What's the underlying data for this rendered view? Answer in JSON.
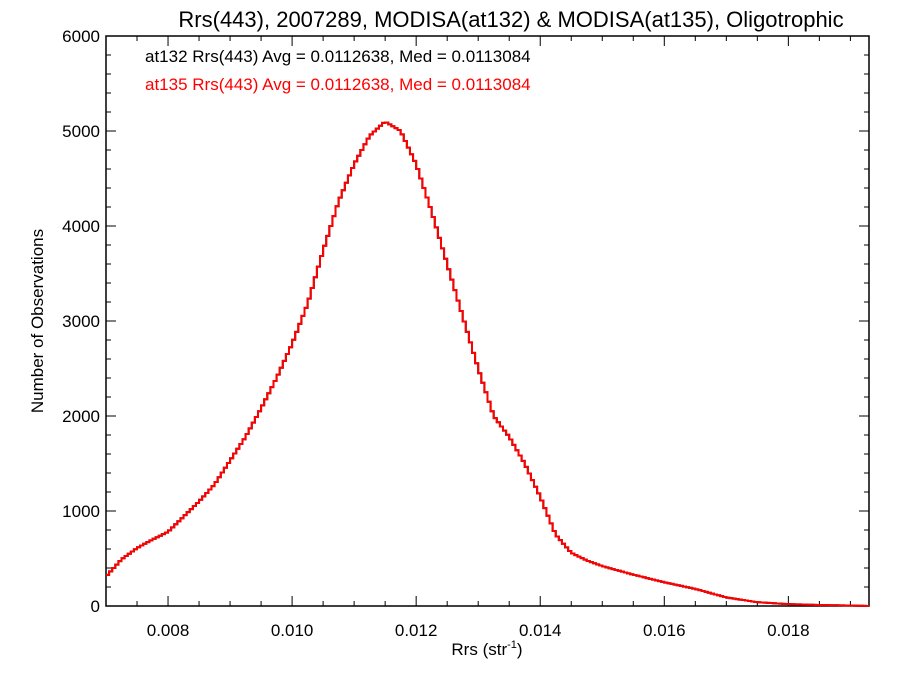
{
  "chart_data": {
    "type": "line",
    "step": true,
    "title": "Rrs(443), 2007289, MODISA(at132) & MODISA(at135), Oligotrophic",
    "xlabel_main": "Rrs (str",
    "xlabel_sup": "-1",
    "xlabel_close": ")",
    "ylabel": "Number of Observations",
    "xlim": [
      0.007,
      0.0193
    ],
    "ylim": [
      0,
      6000
    ],
    "xticks": [
      0.008,
      0.01,
      0.012,
      0.014,
      0.016,
      0.018
    ],
    "xtick_labels": [
      "0.008",
      "0.010",
      "0.012",
      "0.014",
      "0.016",
      "0.018"
    ],
    "yticks": [
      0,
      1000,
      2000,
      3000,
      4000,
      5000,
      6000
    ],
    "ytick_labels": [
      "0",
      "1000",
      "2000",
      "3000",
      "4000",
      "5000",
      "6000"
    ],
    "annotations": [
      {
        "text": "at132 Rrs(443) Avg = 0.0112638, Med = 0.0113084",
        "color": "#000000"
      },
      {
        "text": "at135 Rrs(443) Avg = 0.0112638, Med = 0.0113084",
        "color": "#ff0000"
      }
    ],
    "bin_width": 5e-05,
    "series": [
      {
        "name": "at132",
        "color": "#000000",
        "x": [
          0.007,
          0.00725,
          0.0075,
          0.00775,
          0.008,
          0.00825,
          0.0085,
          0.00875,
          0.009,
          0.00925,
          0.0095,
          0.00975,
          0.01,
          0.01025,
          0.0105,
          0.01075,
          0.011,
          0.01125,
          0.0115,
          0.01175,
          0.012,
          0.01225,
          0.0125,
          0.01275,
          0.013,
          0.01325,
          0.0135,
          0.01375,
          0.014,
          0.01425,
          0.0145,
          0.01475,
          0.015,
          0.0155,
          0.016,
          0.0165,
          0.017,
          0.0175,
          0.018,
          0.0185,
          0.019,
          0.0193
        ],
        "y": [
          310,
          490,
          610,
          700,
          780,
          940,
          1100,
          1280,
          1530,
          1780,
          2080,
          2400,
          2760,
          3180,
          3740,
          4260,
          4650,
          4950,
          5100,
          5000,
          4650,
          4150,
          3600,
          3050,
          2500,
          2000,
          1780,
          1500,
          1150,
          750,
          560,
          480,
          420,
          330,
          250,
          180,
          90,
          40,
          20,
          10,
          5,
          0
        ]
      },
      {
        "name": "at135",
        "color": "#ff0000",
        "x": [
          0.007,
          0.00725,
          0.0075,
          0.00775,
          0.008,
          0.00825,
          0.0085,
          0.00875,
          0.009,
          0.00925,
          0.0095,
          0.00975,
          0.01,
          0.01025,
          0.0105,
          0.01075,
          0.011,
          0.01125,
          0.0115,
          0.01175,
          0.012,
          0.01225,
          0.0125,
          0.01275,
          0.013,
          0.01325,
          0.0135,
          0.01375,
          0.014,
          0.01425,
          0.0145,
          0.01475,
          0.015,
          0.0155,
          0.016,
          0.0165,
          0.017,
          0.0175,
          0.018,
          0.0185,
          0.019,
          0.0193
        ],
        "y": [
          310,
          490,
          610,
          700,
          780,
          940,
          1100,
          1280,
          1530,
          1780,
          2080,
          2400,
          2760,
          3180,
          3740,
          4260,
          4650,
          4950,
          5100,
          5000,
          4650,
          4150,
          3600,
          3050,
          2500,
          2000,
          1780,
          1500,
          1150,
          750,
          560,
          480,
          420,
          330,
          250,
          180,
          90,
          40,
          20,
          10,
          5,
          0
        ]
      }
    ]
  }
}
